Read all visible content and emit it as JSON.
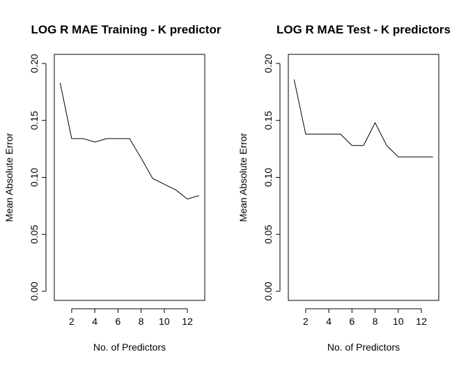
{
  "chart_data": [
    {
      "type": "line",
      "title": "LOG R MAE Training - K predictor",
      "xlabel": "No. of Predictors",
      "ylabel": "Mean Absolute Error",
      "xlim": [
        0.5,
        13.5
      ],
      "ylim": [
        -0.008,
        0.208
      ],
      "xticks": [
        2,
        4,
        6,
        8,
        10,
        12
      ],
      "yticks": [
        0.0,
        0.05,
        0.1,
        0.15,
        0.2
      ],
      "ytick_labels": [
        "0.00",
        "0.05",
        "0.10",
        "0.15",
        "0.20"
      ],
      "grid": false,
      "series": [
        {
          "x": [
            1,
            2,
            3,
            4,
            5,
            6,
            7,
            8,
            9,
            10,
            11,
            12,
            13
          ],
          "values": [
            0.183,
            0.134,
            0.134,
            0.131,
            0.134,
            0.134,
            0.134,
            0.117,
            0.099,
            0.094,
            0.089,
            0.081,
            0.084
          ]
        }
      ]
    },
    {
      "type": "line",
      "title": "LOG R MAE Test - K predictors",
      "xlabel": "No. of Predictors",
      "ylabel": "Mean Absolute Error",
      "xlim": [
        0.5,
        13.5
      ],
      "ylim": [
        -0.008,
        0.208
      ],
      "xticks": [
        2,
        4,
        6,
        8,
        10,
        12
      ],
      "yticks": [
        0.0,
        0.05,
        0.1,
        0.15,
        0.2
      ],
      "ytick_labels": [
        "0.00",
        "0.05",
        "0.10",
        "0.15",
        "0.20"
      ],
      "grid": false,
      "series": [
        {
          "x": [
            1,
            2,
            3,
            4,
            5,
            6,
            7,
            8,
            9,
            10,
            11,
            12,
            13
          ],
          "values": [
            0.186,
            0.138,
            0.138,
            0.138,
            0.138,
            0.128,
            0.128,
            0.148,
            0.128,
            0.118,
            0.118,
            0.118,
            0.118
          ]
        }
      ]
    }
  ]
}
